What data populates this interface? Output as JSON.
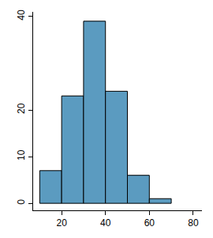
{
  "chart_data": {
    "type": "histogram",
    "bins": [
      10,
      20,
      30,
      40,
      50,
      60,
      70
    ],
    "values": [
      7,
      23,
      39,
      24,
      6,
      1
    ],
    "color": "#5b9bc0",
    "xlim": [
      7,
      84
    ],
    "xticks": [
      20,
      40,
      60,
      80
    ],
    "ylim": [
      -1.5,
      41
    ],
    "yticks": [
      0,
      10,
      20,
      40
    ],
    "grid": false
  }
}
